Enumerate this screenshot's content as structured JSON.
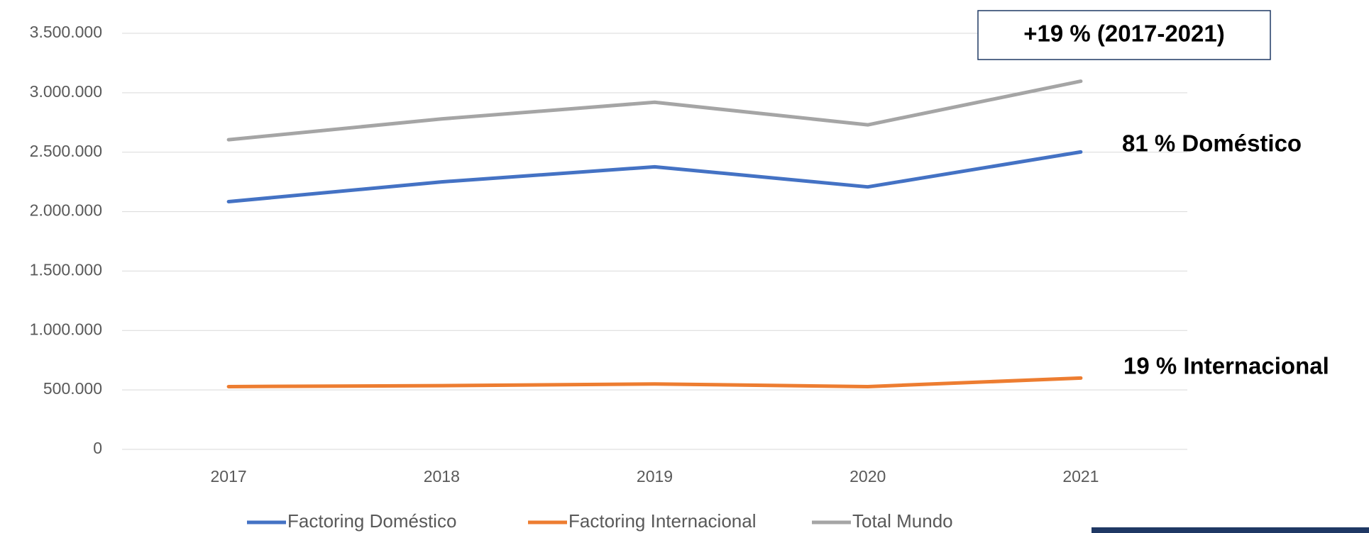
{
  "chart_data": {
    "type": "line",
    "categories": [
      "2017",
      "2018",
      "2019",
      "2020",
      "2021"
    ],
    "series": [
      {
        "name": "Factoring Doméstico",
        "color": "#4472c4",
        "values": [
          2084000,
          2250000,
          2377000,
          2208000,
          2502000
        ]
      },
      {
        "name": "Factoring Internacional",
        "color": "#ed7d31",
        "values": [
          528000,
          536000,
          550000,
          528000,
          600000
        ]
      },
      {
        "name": "Total Mundo",
        "color": "#a5a5a5",
        "values": [
          2605000,
          2780000,
          2920000,
          2730000,
          3097000
        ]
      }
    ],
    "ylim": [
      0,
      3500000
    ],
    "yticks": [
      0,
      {
        "value": 500000,
        "label": "500.000"
      },
      {
        "value": 1000000,
        "label": "1.000.000"
      },
      {
        "value": 1500000,
        "label": "1.500.000"
      },
      {
        "value": 2000000,
        "label": "2.000.000"
      },
      {
        "value": 2500000,
        "label": "2.500.000"
      },
      {
        "value": 3000000,
        "label": "3.000.000"
      },
      {
        "value": 3500000,
        "label": "3.500.000"
      }
    ],
    "grid": true,
    "legend": "bottom",
    "annotations": [
      "+19 % (2017-2021)",
      "81 % Doméstico",
      "19 % Internacional"
    ]
  }
}
